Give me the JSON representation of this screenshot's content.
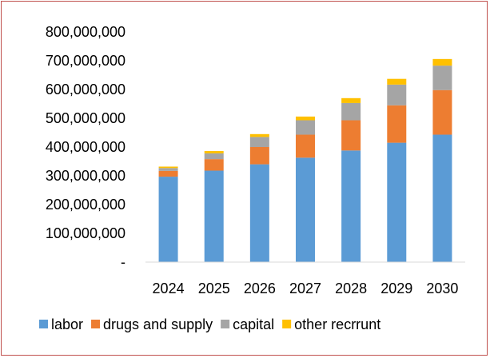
{
  "chart_data": {
    "type": "bar",
    "stacked": true,
    "categories": [
      "2024",
      "2025",
      "2026",
      "2027",
      "2028",
      "2029",
      "2030"
    ],
    "series": [
      {
        "name": "labor",
        "color": "#5b9bd5",
        "values": [
          297000000,
          318000000,
          340000000,
          363000000,
          388000000,
          415000000,
          443000000
        ]
      },
      {
        "name": "drugs and supply",
        "color": "#ed7d31",
        "values": [
          20000000,
          40000000,
          60000000,
          80000000,
          105000000,
          130000000,
          155000000
        ]
      },
      {
        "name": "capital",
        "color": "#a5a5a5",
        "values": [
          10000000,
          20000000,
          35000000,
          50000000,
          60000000,
          72000000,
          85000000
        ]
      },
      {
        "name": "other recrrunt",
        "color": "#ffc000",
        "values": [
          5000000,
          8000000,
          10000000,
          13000000,
          17000000,
          20000000,
          23000000
        ]
      }
    ],
    "y_ticks": [
      "-",
      "100,000,000",
      "200,000,000",
      "300,000,000",
      "400,000,000",
      "500,000,000",
      "600,000,000",
      "700,000,000",
      "800,000,000"
    ],
    "ylim": [
      0,
      800000000
    ],
    "grid": false,
    "legend_position": "bottom"
  }
}
